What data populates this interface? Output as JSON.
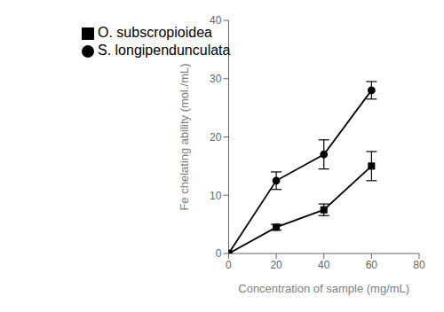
{
  "chart_data": {
    "type": "line",
    "xlabel": "Concentration of sample (mg/mL)",
    "ylabel": "Fe chelating ability (mol./mL)",
    "x": [
      0,
      20,
      40,
      60
    ],
    "series": [
      {
        "name": "S. longipendunculata",
        "color": "#000000",
        "marker": "circle",
        "values": [
          0,
          12.5,
          17.0,
          28.0
        ],
        "yerr": [
          0,
          1.5,
          2.5,
          1.5
        ]
      },
      {
        "name": "O. subscropioidea",
        "color": "#000000",
        "marker": "square",
        "values": [
          0,
          4.5,
          7.5,
          15.0
        ],
        "yerr": [
          0,
          0.5,
          1.0,
          2.5
        ]
      }
    ],
    "xlim": [
      0,
      80
    ],
    "ylim": [
      0,
      40
    ],
    "xticks": [
      0,
      20,
      40,
      60,
      80
    ],
    "yticks": [
      0,
      10,
      20,
      30,
      40
    ],
    "legend": "upper left",
    "grid": false
  }
}
